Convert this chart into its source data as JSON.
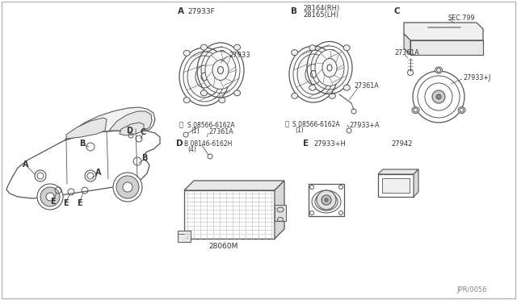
{
  "bg_color": "#ffffff",
  "line_color": "#555555",
  "text_color": "#333333",
  "part_number_ref": "JPR/0056",
  "labels": {
    "part_27933F": "27933F",
    "part_27933": "27933",
    "part_28164": "28164(RH)",
    "part_28165": "28165(LH)",
    "part_27361A_1": "27361A",
    "part_27361A_2": "27361A",
    "part_27361A_C": "27361A",
    "part_08566_1": "S 08566-6162A",
    "part_08566_2": "S 08566-6162A",
    "part_1_1": "(1)",
    "part_1_2": "(1)",
    "part_27933_plus_A": "27933+A",
    "part_27933_plus_J": "27933+J",
    "part_SEC799": "SEC.799",
    "part_08146": "B 08146-6162H",
    "part_4": "(4)",
    "part_28060M": "28060M",
    "part_27933_plus_H": "27933+H",
    "part_27942": "27942"
  }
}
